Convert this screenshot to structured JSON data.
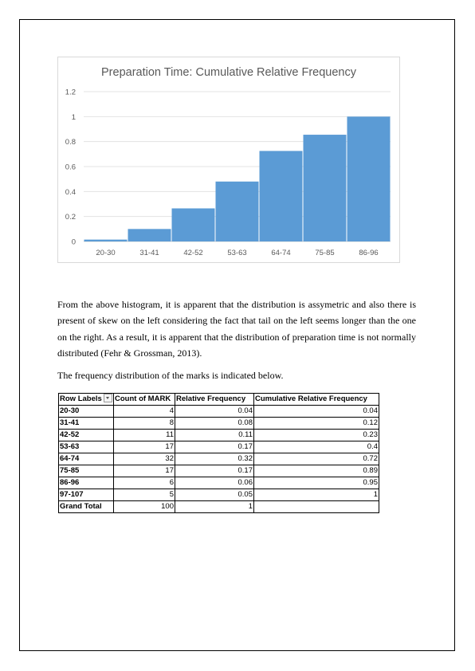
{
  "chart_data": {
    "type": "bar",
    "title": "Preparation Time: Cumulative Relative Frequency",
    "categories": [
      "20-30",
      "31-41",
      "42-52",
      "53-63",
      "64-74",
      "75-85",
      "86-96"
    ],
    "values": [
      0.015,
      0.1,
      0.265,
      0.48,
      0.725,
      0.855,
      1.0
    ],
    "y_ticks": [
      "0",
      "0.2",
      "0.4",
      "0.6",
      "0.8",
      "1",
      "1.2"
    ],
    "ylim": [
      0,
      1.2
    ],
    "grid": true,
    "bar_color": "#5b9bd5"
  },
  "paragraphs": {
    "p1": "From the above histogram, it is apparent that the distribution is assymetric and also there is present of skew on the left considering the fact that tail on the left seems longer than the one on the right. As a result, it is apparent that the distribution of preparation time is not normally distributed (Fehr & Grossman, 2013).",
    "p2": "The frequency distribution of the marks is indicated below."
  },
  "table": {
    "headers": [
      "Row Labels",
      "Count of MARK",
      "Relative Frequency",
      "Cumulative Relative Frequency"
    ],
    "rows": [
      [
        "20-30",
        "4",
        "0.04",
        "0.04"
      ],
      [
        "31-41",
        "8",
        "0.08",
        "0.12"
      ],
      [
        "42-52",
        "11",
        "0.11",
        "0.23"
      ],
      [
        "53-63",
        "17",
        "0.17",
        "0.4"
      ],
      [
        "64-74",
        "32",
        "0.32",
        "0.72"
      ],
      [
        "75-85",
        "17",
        "0.17",
        "0.89"
      ],
      [
        "86-96",
        "6",
        "0.06",
        "0.95"
      ],
      [
        "97-107",
        "5",
        "0.05",
        "1"
      ],
      [
        "Grand Total",
        "100",
        "1",
        ""
      ]
    ]
  }
}
